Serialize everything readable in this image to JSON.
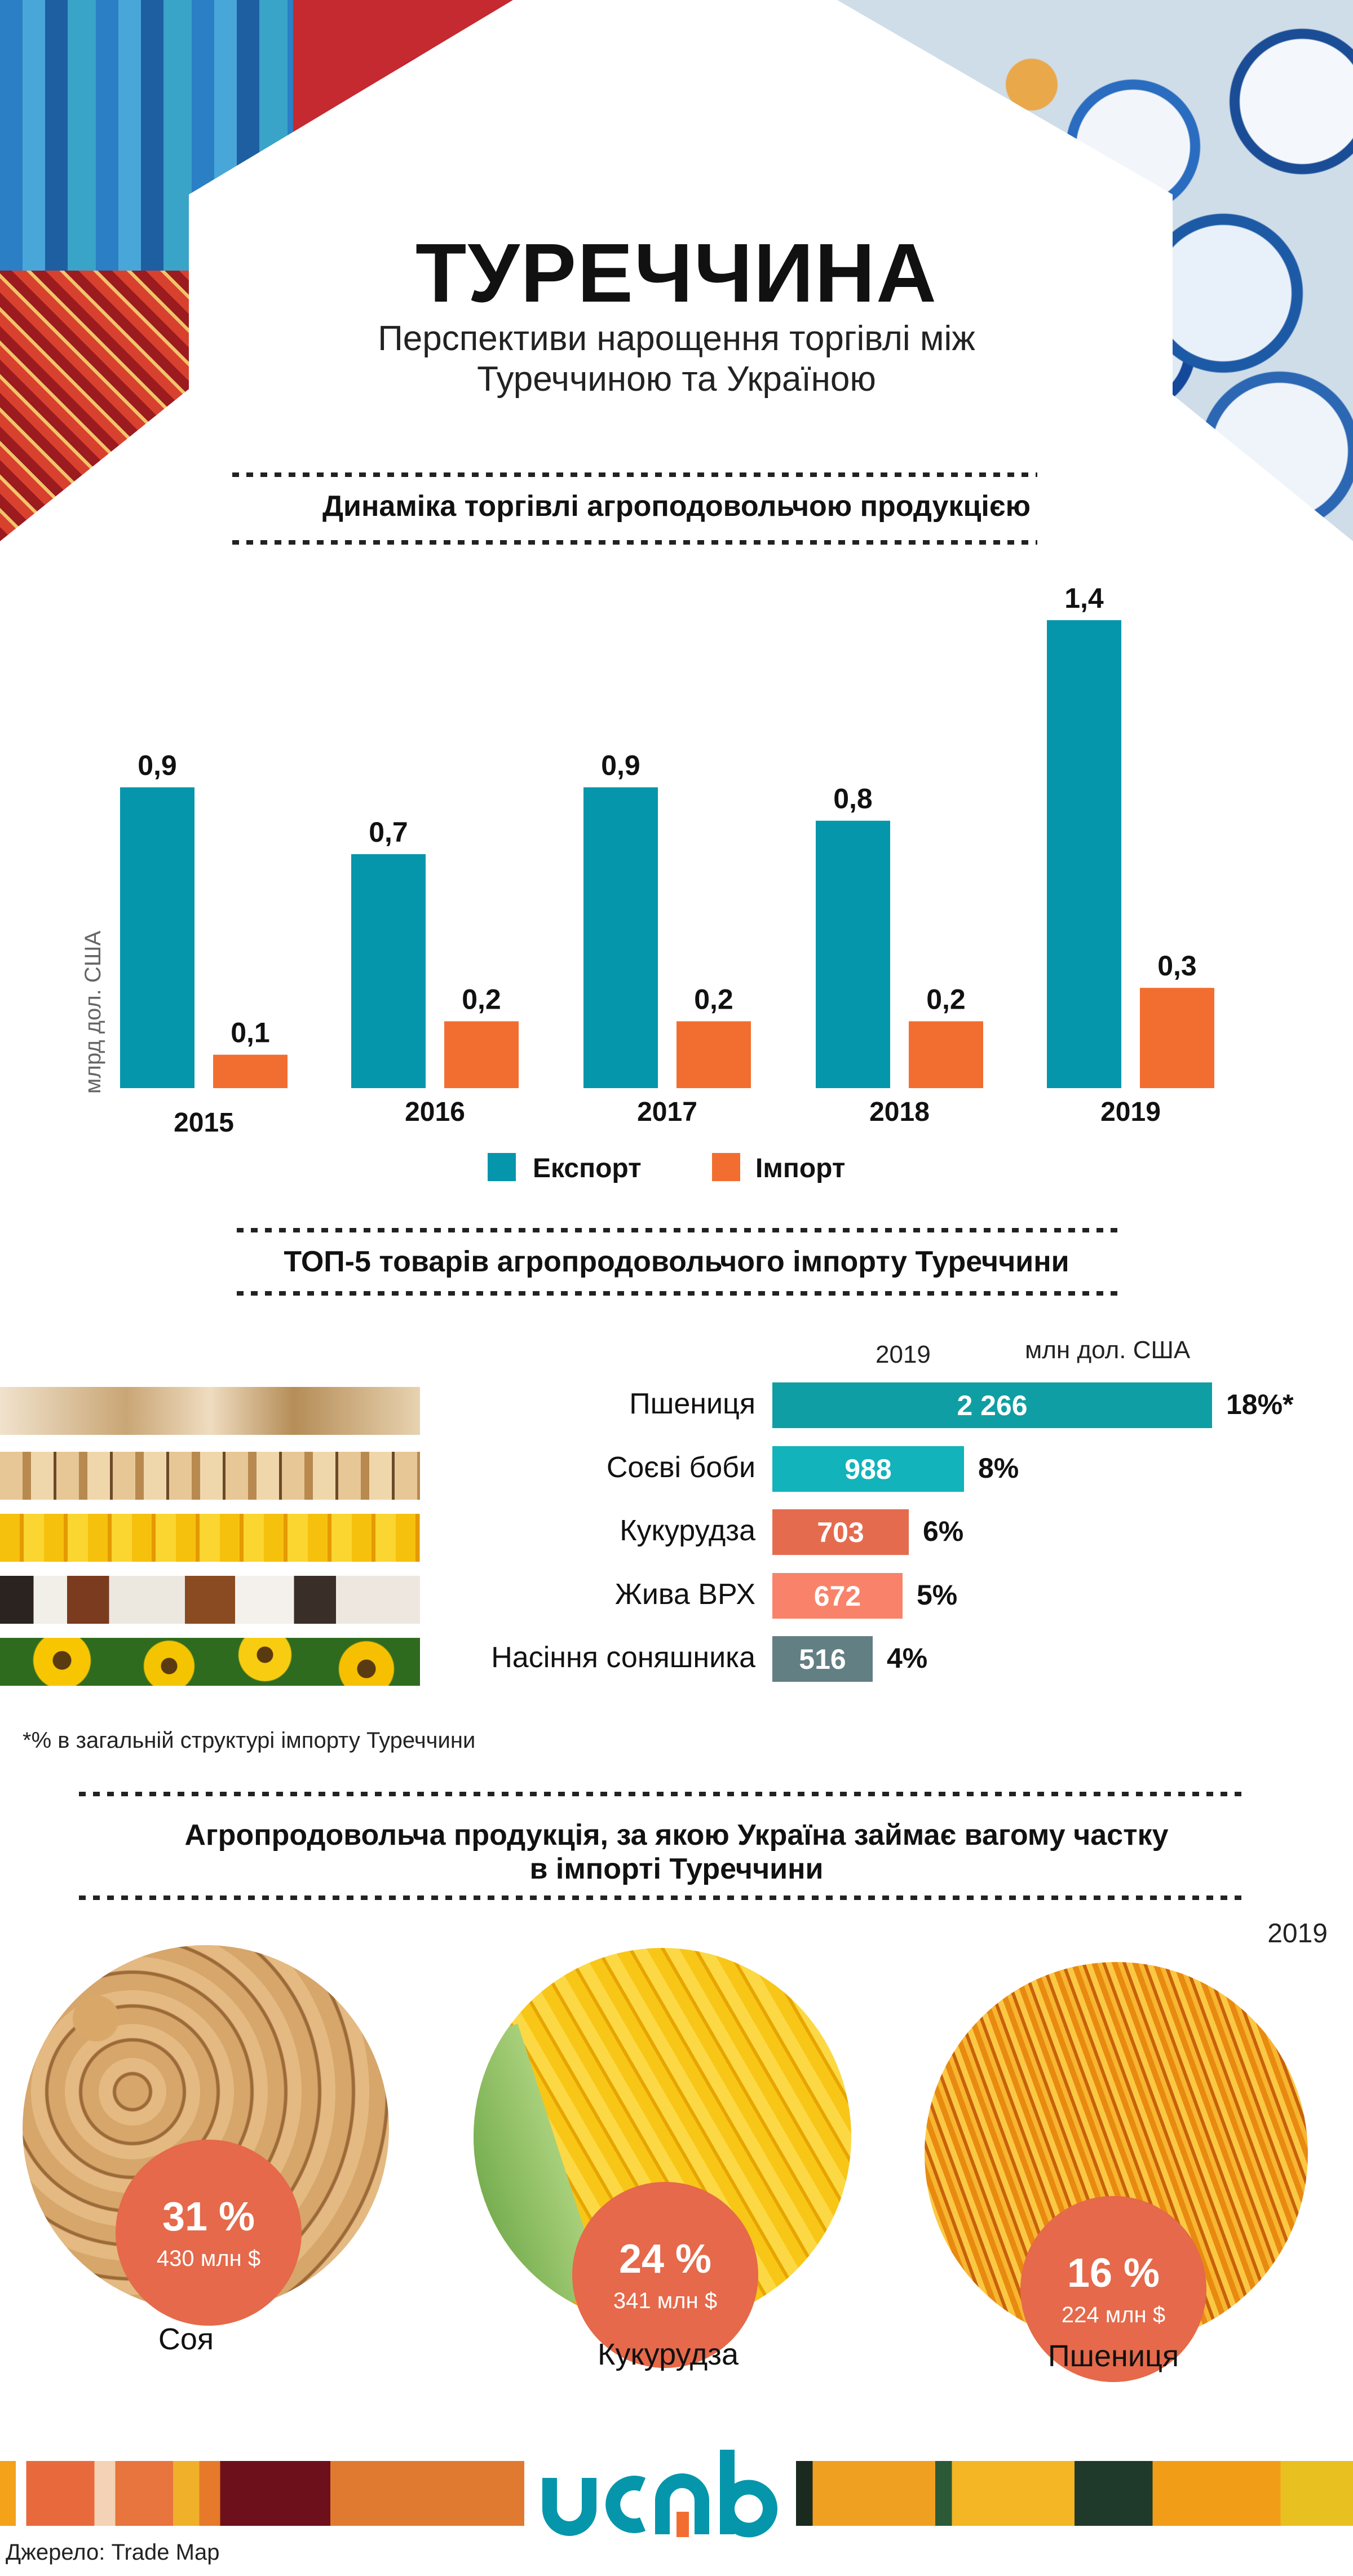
{
  "header": {
    "title": "ТУРЕЧЧИНА",
    "subtitle_line1": "Перспективи нарощення торгівлі між",
    "subtitle_line2": "Туреччиною та Україною"
  },
  "sections": {
    "trade_dynamics_title": "Динаміка торгівлі агроподовольчою продукцією",
    "top5_title": "ТОП-5 товарів агропродовольчого імпорту Туреччини",
    "share_title_line1": "Агропродовольча продукція, за якою Україна займає вагому частку",
    "share_title_line2": "в імпорті Туреччини"
  },
  "colors": {
    "export": "#0596ab",
    "import": "#f26e30",
    "badge": "#e5694a",
    "logo_teal": "#0596ab",
    "logo_orange": "#f26e30"
  },
  "chart_data": [
    {
      "type": "bar",
      "title": "Динаміка торгівлі агроподовольчою продукцією",
      "xlabel": "",
      "ylabel": "млрд дол. США",
      "categories": [
        "2015",
        "2016",
        "2017",
        "2018",
        "2019"
      ],
      "series": [
        {
          "name": "Експорт",
          "color": "#0596ab",
          "values": [
            0.9,
            0.7,
            0.9,
            0.8,
            1.4
          ],
          "labels": [
            "0,9",
            "0,7",
            "0,9",
            "0,8",
            "1,4"
          ]
        },
        {
          "name": "Імпорт",
          "color": "#f26e30",
          "values": [
            0.1,
            0.2,
            0.2,
            0.2,
            0.3
          ],
          "labels": [
            "0,1",
            "0,2",
            "0,2",
            "0,2",
            "0,3"
          ]
        }
      ],
      "ylim": [
        0,
        1.4
      ],
      "grid": false,
      "legend": "bottom-center"
    },
    {
      "type": "bar",
      "orientation": "horizontal",
      "title": "ТОП-5 товарів агропродовольчого імпорту Туреччини",
      "year": "2019",
      "unit": "млн дол. США",
      "categories": [
        "Пшениця",
        "Соєві боби",
        "Кукурудза",
        "Жива ВРХ",
        "Насіння соняшника"
      ],
      "values": [
        2266,
        988,
        703,
        672,
        516
      ],
      "value_labels": [
        "2 266",
        "988",
        "703",
        "672",
        "516"
      ],
      "share_labels": [
        "18%*",
        "8%",
        "6%",
        "5%",
        "4%"
      ],
      "bar_colors": [
        "#0f9ea3",
        "#12b3bb",
        "#e56b4f",
        "#f8836a",
        "#627f83"
      ]
    }
  ],
  "top5": {
    "year": "2019",
    "unit": "млн дол. США",
    "footnote": "*% в загальній структурі імпорту Туреччини"
  },
  "shares": {
    "year": "2019",
    "items": [
      {
        "name": "Соя",
        "pct": "31 %",
        "amount": "430 млн $"
      },
      {
        "name": "Кукурудза",
        "pct": "24 %",
        "amount": "341 млн $"
      },
      {
        "name": "Пшениця",
        "pct": "16 %",
        "amount": "224 млн $"
      }
    ]
  },
  "footer": {
    "logo_text": "ucab",
    "source": "Джерело: Trade Map"
  }
}
